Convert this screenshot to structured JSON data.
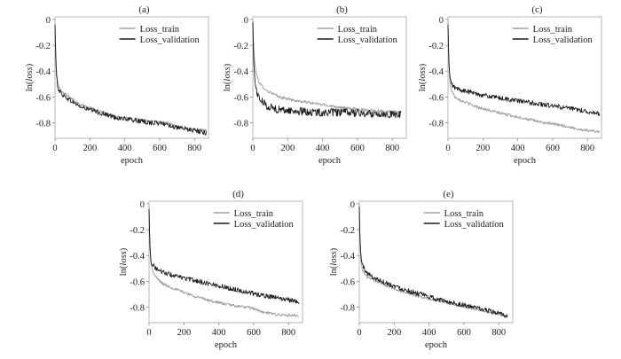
{
  "chart_data": [
    {
      "panel": "(a)",
      "type": "line",
      "xlabel": "epoch",
      "ylabel_prefix": "ln(",
      "ylabel_italic": "loss",
      "ylabel_suffix": ")",
      "xlim": [
        0,
        880
      ],
      "ylim": [
        -0.92,
        0.02
      ],
      "xticks": [
        0,
        200,
        400,
        600,
        800
      ],
      "yticks": [
        0,
        -0.2,
        -0.4,
        -0.6,
        -0.8
      ],
      "legend_position": "top-right",
      "series": [
        {
          "name": "Loss_train",
          "color": "#a0a0a0",
          "x": [
            0,
            4,
            10,
            20,
            40,
            80,
            150,
            250,
            350,
            450,
            550,
            640,
            700,
            800,
            870
          ],
          "y": [
            -0.02,
            -0.26,
            -0.45,
            -0.52,
            -0.56,
            -0.6,
            -0.66,
            -0.71,
            -0.75,
            -0.77,
            -0.79,
            -0.8,
            -0.83,
            -0.85,
            -0.86
          ]
        },
        {
          "name": "Loss_validation",
          "color": "#1a1a1a",
          "x": [
            0,
            4,
            10,
            20,
            40,
            80,
            150,
            250,
            350,
            450,
            550,
            640,
            700,
            800,
            870
          ],
          "y": [
            -0.04,
            -0.3,
            -0.47,
            -0.54,
            -0.58,
            -0.62,
            -0.68,
            -0.72,
            -0.76,
            -0.78,
            -0.8,
            -0.81,
            -0.84,
            -0.86,
            -0.88
          ]
        }
      ]
    },
    {
      "panel": "(b)",
      "type": "line",
      "xlabel": "epoch",
      "ylabel_prefix": "ln(",
      "ylabel_italic": "loss",
      "ylabel_suffix": ")",
      "xlim": [
        0,
        880
      ],
      "ylim": [
        -0.92,
        0.02
      ],
      "xticks": [
        0,
        200,
        400,
        600,
        800
      ],
      "yticks": [
        0,
        -0.2,
        -0.4,
        -0.6,
        -0.8
      ],
      "legend_position": "top-right",
      "series": [
        {
          "name": "Loss_train",
          "color": "#a0a0a0",
          "x": [
            0,
            4,
            10,
            20,
            40,
            80,
            150,
            250,
            350,
            450,
            550,
            650,
            750,
            850
          ],
          "y": [
            -0.02,
            -0.2,
            -0.33,
            -0.42,
            -0.5,
            -0.55,
            -0.6,
            -0.63,
            -0.65,
            -0.67,
            -0.69,
            -0.7,
            -0.71,
            -0.72
          ]
        },
        {
          "name": "Loss_validation",
          "color": "#1a1a1a",
          "x": [
            0,
            4,
            10,
            20,
            40,
            80,
            150,
            250,
            350,
            450,
            550,
            650,
            750,
            850
          ],
          "y": [
            -0.02,
            -0.3,
            -0.45,
            -0.55,
            -0.62,
            -0.67,
            -0.7,
            -0.71,
            -0.72,
            -0.72,
            -0.72,
            -0.73,
            -0.73,
            -0.74
          ]
        }
      ]
    },
    {
      "panel": "(c)",
      "type": "line",
      "xlabel": "epoch",
      "ylabel_prefix": "ln(",
      "ylabel_italic": "loss",
      "ylabel_suffix": ")",
      "xlim": [
        0,
        880
      ],
      "ylim": [
        -0.92,
        0.02
      ],
      "xticks": [
        0,
        200,
        400,
        600,
        800
      ],
      "yticks": [
        0,
        -0.2,
        -0.4,
        -0.6,
        -0.8
      ],
      "legend_position": "top-right",
      "series": [
        {
          "name": "Loss_train",
          "color": "#a0a0a0",
          "x": [
            0,
            4,
            10,
            20,
            40,
            80,
            150,
            250,
            350,
            450,
            550,
            650,
            750,
            870
          ],
          "y": [
            -0.02,
            -0.3,
            -0.48,
            -0.55,
            -0.6,
            -0.63,
            -0.67,
            -0.71,
            -0.74,
            -0.77,
            -0.8,
            -0.82,
            -0.85,
            -0.87
          ]
        },
        {
          "name": "Loss_validation",
          "color": "#1a1a1a",
          "x": [
            0,
            4,
            10,
            20,
            40,
            80,
            150,
            250,
            350,
            450,
            550,
            650,
            750,
            870
          ],
          "y": [
            -0.04,
            -0.3,
            -0.45,
            -0.5,
            -0.53,
            -0.55,
            -0.57,
            -0.6,
            -0.62,
            -0.64,
            -0.66,
            -0.68,
            -0.7,
            -0.73
          ]
        }
      ]
    },
    {
      "panel": "(d)",
      "type": "line",
      "xlabel": "epoch",
      "ylabel_prefix": "ln(",
      "ylabel_italic": "loss",
      "ylabel_suffix": ")",
      "xlim": [
        0,
        880
      ],
      "ylim": [
        -0.92,
        0.02
      ],
      "xticks": [
        0,
        200,
        400,
        600,
        800
      ],
      "yticks": [
        0,
        -0.2,
        -0.4,
        -0.6,
        -0.8
      ],
      "legend_position": "top-right",
      "series": [
        {
          "name": "Loss_train",
          "color": "#a0a0a0",
          "x": [
            0,
            4,
            10,
            20,
            40,
            80,
            150,
            250,
            350,
            450,
            550,
            600,
            650,
            750,
            860
          ],
          "y": [
            -0.02,
            -0.3,
            -0.45,
            -0.52,
            -0.57,
            -0.62,
            -0.66,
            -0.71,
            -0.75,
            -0.78,
            -0.8,
            -0.81,
            -0.84,
            -0.86,
            -0.87
          ]
        },
        {
          "name": "Loss_validation",
          "color": "#1a1a1a",
          "x": [
            0,
            4,
            10,
            20,
            40,
            80,
            150,
            250,
            350,
            450,
            550,
            650,
            750,
            860
          ],
          "y": [
            -0.04,
            -0.3,
            -0.44,
            -0.47,
            -0.5,
            -0.53,
            -0.56,
            -0.59,
            -0.62,
            -0.65,
            -0.68,
            -0.71,
            -0.73,
            -0.76
          ]
        }
      ]
    },
    {
      "panel": "(e)",
      "type": "line",
      "xlabel": "epoch",
      "ylabel_prefix": "ln(",
      "ylabel_italic": "loss",
      "ylabel_suffix": ")",
      "xlim": [
        0,
        880
      ],
      "ylim": [
        -0.92,
        0.02
      ],
      "xticks": [
        0,
        200,
        400,
        600,
        800
      ],
      "yticks": [
        0,
        -0.2,
        -0.4,
        -0.6,
        -0.8
      ],
      "legend_position": "top-right",
      "series": [
        {
          "name": "Loss_train",
          "color": "#a0a0a0",
          "x": [
            0,
            4,
            10,
            20,
            40,
            80,
            150,
            250,
            350,
            450,
            550,
            650,
            750,
            850
          ],
          "y": [
            -0.02,
            -0.3,
            -0.46,
            -0.52,
            -0.56,
            -0.59,
            -0.63,
            -0.68,
            -0.72,
            -0.75,
            -0.78,
            -0.81,
            -0.84,
            -0.87
          ]
        },
        {
          "name": "Loss_validation",
          "color": "#1a1a1a",
          "x": [
            0,
            4,
            10,
            20,
            40,
            80,
            150,
            250,
            350,
            450,
            550,
            650,
            750,
            850
          ],
          "y": [
            -0.02,
            -0.28,
            -0.42,
            -0.48,
            -0.53,
            -0.57,
            -0.61,
            -0.66,
            -0.7,
            -0.74,
            -0.77,
            -0.8,
            -0.83,
            -0.87
          ]
        }
      ]
    }
  ]
}
